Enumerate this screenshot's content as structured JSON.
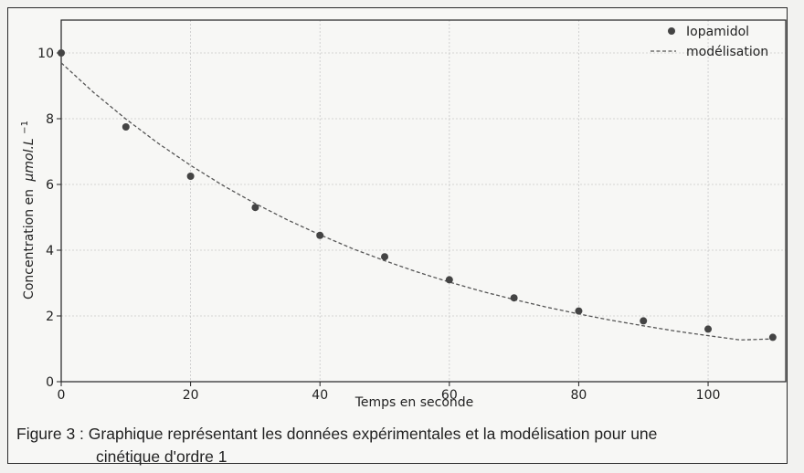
{
  "chart_data": {
    "type": "scatter",
    "xlabel": "Temps en seconde",
    "ylabel": "Concentration en",
    "ylabel_unit": "μmol.L",
    "ylabel_exp": "−1",
    "xlim": [
      0,
      112
    ],
    "ylim": [
      0,
      11
    ],
    "x_ticks": [
      0,
      20,
      40,
      60,
      80,
      100
    ],
    "y_ticks": [
      0,
      2,
      4,
      6,
      8,
      10
    ],
    "grid": true,
    "legend_position": "top-right",
    "series": [
      {
        "name": "Iopamidol",
        "kind": "scatter",
        "color": "#444444",
        "x": [
          0,
          10,
          20,
          30,
          40,
          50,
          60,
          70,
          80,
          90,
          100,
          110
        ],
        "y": [
          10.0,
          7.75,
          6.25,
          5.3,
          4.45,
          3.8,
          3.1,
          2.55,
          2.15,
          1.85,
          1.6,
          1.35
        ]
      },
      {
        "name": "modélisation",
        "kind": "line",
        "style": "dashed",
        "color": "#555555",
        "x": [
          0,
          5,
          10,
          15,
          20,
          25,
          30,
          35,
          40,
          45,
          50,
          55,
          60,
          65,
          70,
          75,
          80,
          85,
          90,
          95,
          100,
          105,
          110
        ],
        "y": [
          9.7,
          8.8,
          7.99,
          7.25,
          6.58,
          5.97,
          5.42,
          4.92,
          4.47,
          4.05,
          3.68,
          3.34,
          3.03,
          2.75,
          2.5,
          2.27,
          2.06,
          1.87,
          1.7,
          1.54,
          1.4,
          1.27,
          1.3
        ]
      }
    ]
  },
  "caption": {
    "line1": "Figure 3 : Graphique représentant les données expérimentales et la modélisation pour une",
    "line2": "cinétique d'ordre 1"
  }
}
